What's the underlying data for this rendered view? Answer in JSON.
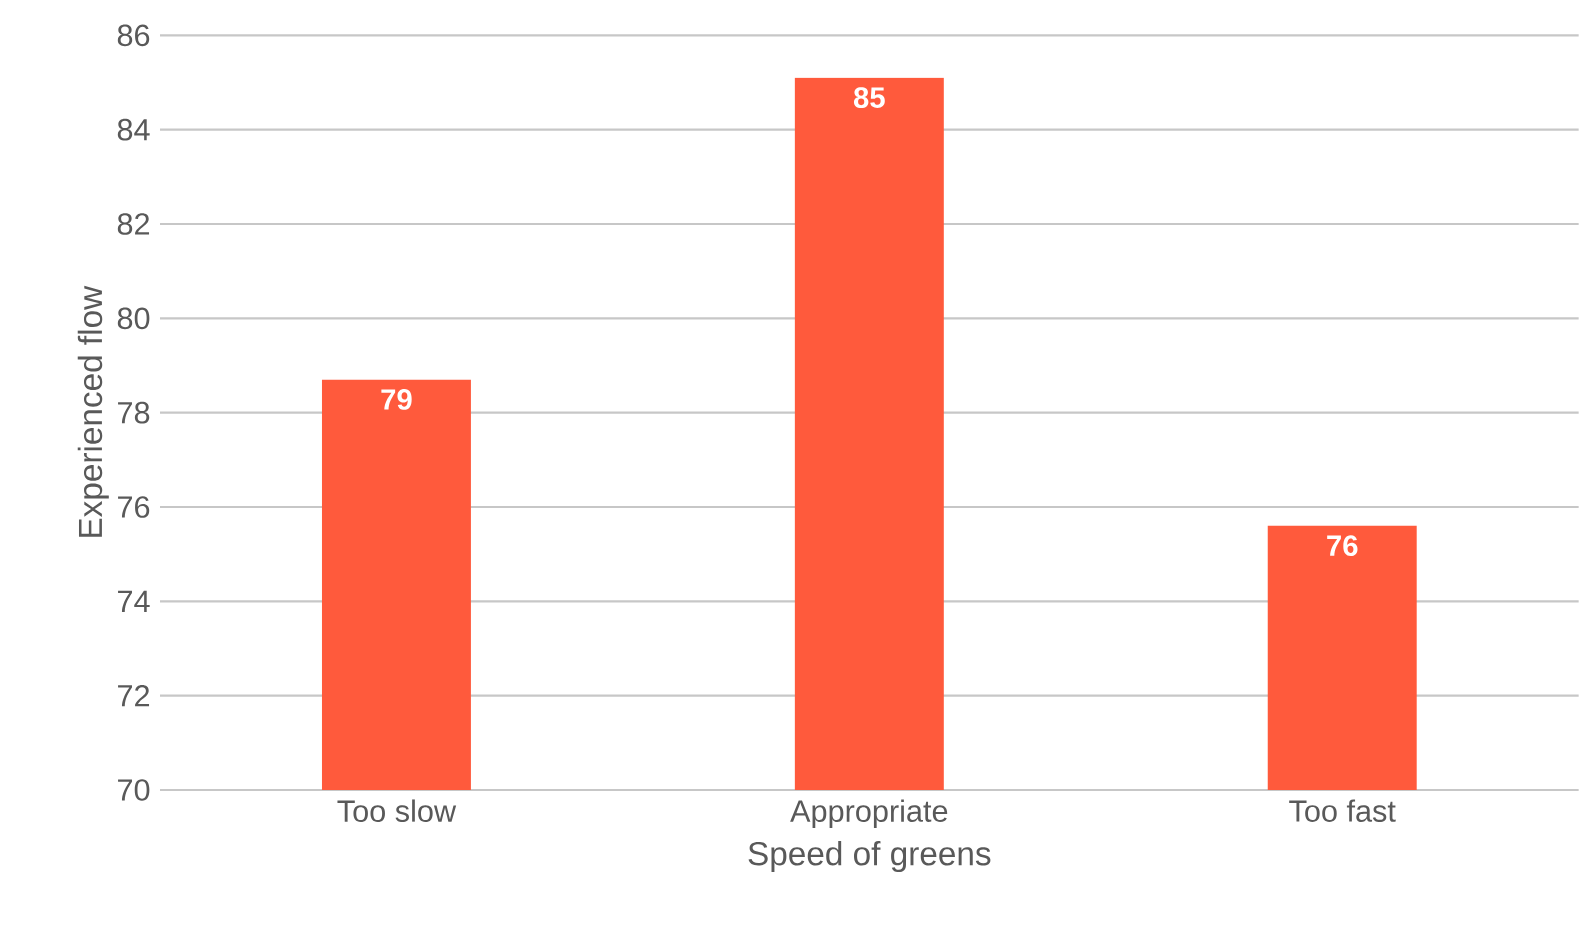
{
  "chart_data": {
    "type": "bar",
    "xlabel": "Speed of greens",
    "ylabel": "Experienced flow",
    "categories": [
      "Too slow",
      "Appropriate",
      "Too fast"
    ],
    "values": [
      78.7,
      85.1,
      75.6
    ],
    "value_labels": [
      "79",
      "85",
      "76"
    ],
    "color": "#ff5a3c",
    "ylim": [
      70,
      86
    ],
    "yticks": [
      70,
      72,
      74,
      76,
      78,
      80,
      82,
      84,
      86
    ],
    "grid": "y"
  }
}
